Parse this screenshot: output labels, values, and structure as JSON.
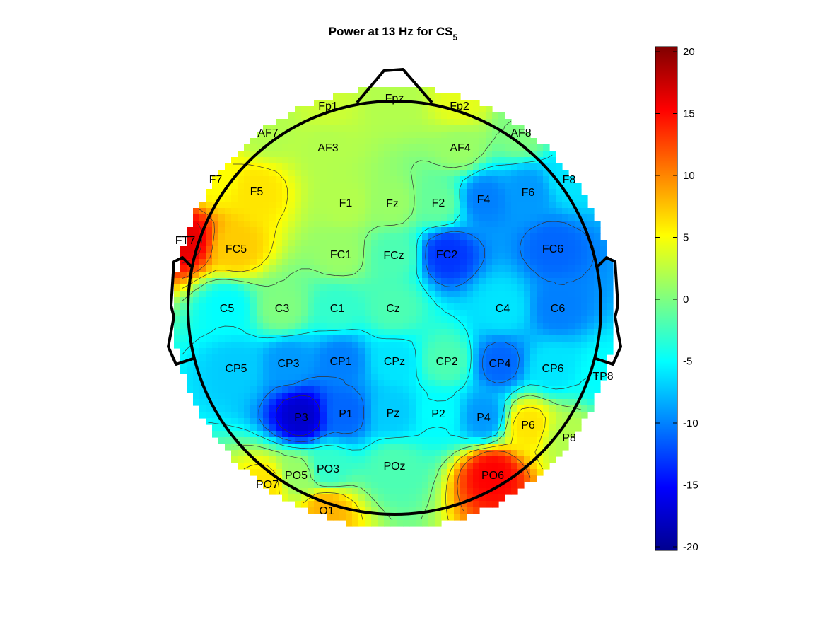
{
  "chart_data": {
    "type": "heatmap",
    "subtype": "eeg-topographic-map",
    "title": "Power at 13 Hz for CS",
    "title_subscript": "5",
    "colormap": "jet",
    "clim": [
      -20,
      20
    ],
    "colorbar": {
      "placement": "right",
      "ticks": [
        "20",
        "15",
        "10",
        "5",
        "0",
        "-5",
        "-10",
        "-15",
        "-20"
      ]
    },
    "contours": true,
    "electrodes": [
      {
        "label": "Fpz",
        "value": 2
      },
      {
        "label": "Fp1",
        "value": 3
      },
      {
        "label": "Fp2",
        "value": 4
      },
      {
        "label": "AF7",
        "value": 2
      },
      {
        "label": "AF3",
        "value": 2
      },
      {
        "label": "AF4",
        "value": 1
      },
      {
        "label": "AF8",
        "value": 0
      },
      {
        "label": "F7",
        "value": 5
      },
      {
        "label": "F5",
        "value": 6
      },
      {
        "label": "F1",
        "value": 2
      },
      {
        "label": "Fz",
        "value": 1
      },
      {
        "label": "F2",
        "value": -1
      },
      {
        "label": "F4",
        "value": -10
      },
      {
        "label": "F6",
        "value": -9
      },
      {
        "label": "F8",
        "value": -6
      },
      {
        "label": "FT7",
        "value": 16
      },
      {
        "label": "FC5",
        "value": 7
      },
      {
        "label": "FC1",
        "value": 1
      },
      {
        "label": "FCz",
        "value": -2
      },
      {
        "label": "FC2",
        "value": -13
      },
      {
        "label": "FC6",
        "value": -11
      },
      {
        "label": "C5",
        "value": -5
      },
      {
        "label": "C3",
        "value": 0
      },
      {
        "label": "C1",
        "value": -3
      },
      {
        "label": "Cz",
        "value": -2
      },
      {
        "label": "C4",
        "value": -6
      },
      {
        "label": "C6",
        "value": -10
      },
      {
        "label": "CP5",
        "value": -7
      },
      {
        "label": "CP3",
        "value": -9
      },
      {
        "label": "CP1",
        "value": -10
      },
      {
        "label": "CPz",
        "value": -6
      },
      {
        "label": "CP2",
        "value": -2
      },
      {
        "label": "CP4",
        "value": -11
      },
      {
        "label": "CP6",
        "value": -6
      },
      {
        "label": "TP8",
        "value": -5
      },
      {
        "label": "P3",
        "value": -17
      },
      {
        "label": "P1",
        "value": -11
      },
      {
        "label": "Pz",
        "value": -7
      },
      {
        "label": "P2",
        "value": -5
      },
      {
        "label": "P4",
        "value": -9
      },
      {
        "label": "P6",
        "value": 6
      },
      {
        "label": "P8",
        "value": 2
      },
      {
        "label": "PO7",
        "value": 6
      },
      {
        "label": "PO5",
        "value": 1
      },
      {
        "label": "PO3",
        "value": -3
      },
      {
        "label": "POz",
        "value": -2
      },
      {
        "label": "PO6",
        "value": 15
      },
      {
        "label": "O1",
        "value": 8
      }
    ]
  }
}
